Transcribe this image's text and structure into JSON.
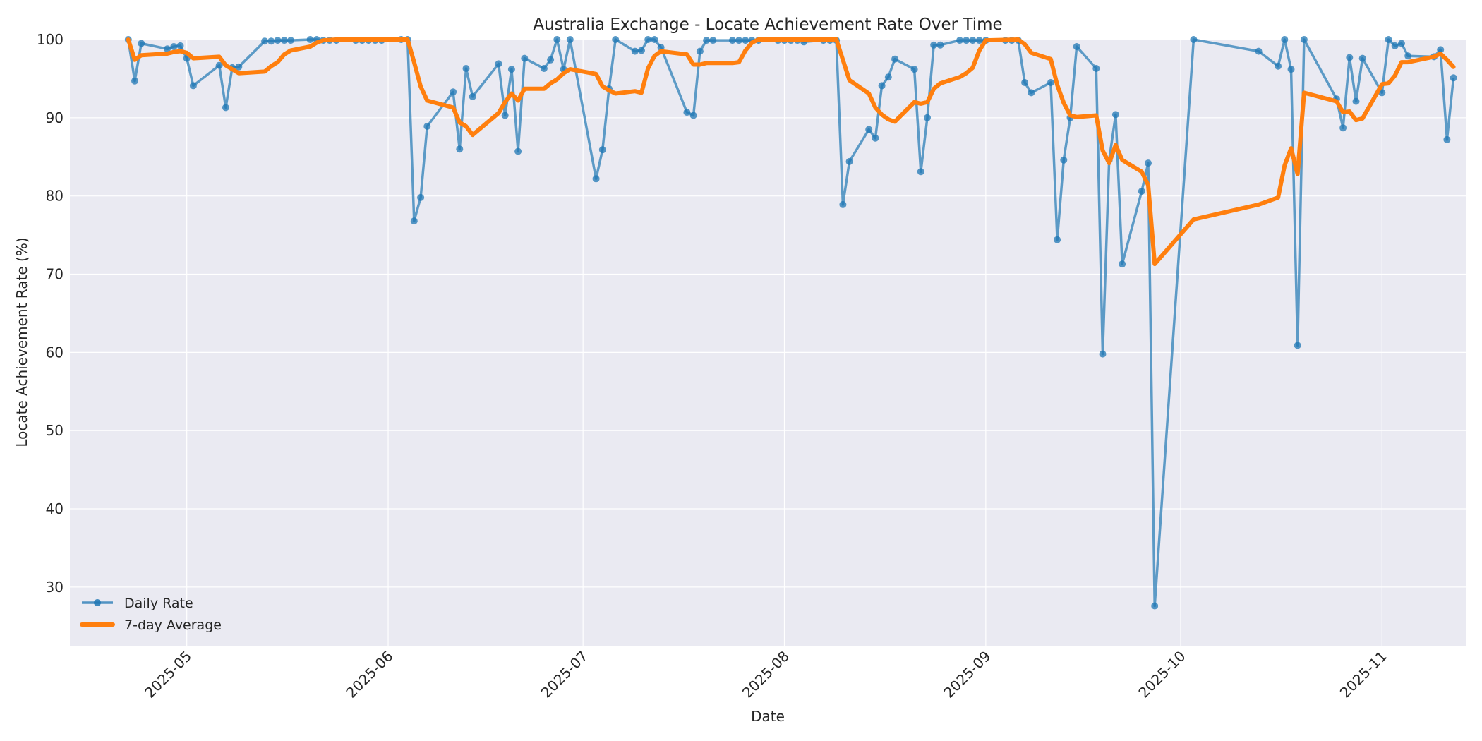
{
  "chart_data": {
    "type": "line",
    "title": "Australia Exchange - Locate Achievement Rate Over Time",
    "xlabel": "Date",
    "ylabel": "Locate Achievement Rate (%)",
    "ylim": [
      22.5,
      100
    ],
    "xlim": [
      "2025-04-13",
      "2025-11-14"
    ],
    "grid": true,
    "legend_position": "lower left",
    "x_ticks": [
      "2025-05",
      "2025-06",
      "2025-07",
      "2025-08",
      "2025-09",
      "2025-10",
      "2025-11"
    ],
    "y_ticks": [
      30,
      40,
      50,
      60,
      70,
      80,
      90,
      100
    ],
    "colors": {
      "daily": "#1f77b4",
      "average": "#ff7f0e",
      "plot_bg": "#eaeaf2",
      "grid": "#ffffff"
    },
    "series": [
      {
        "name": "Daily Rate",
        "style": "line-with-markers",
        "points": [
          [
            "2025-04-22",
            100.0
          ],
          [
            "2025-04-23",
            94.7
          ],
          [
            "2025-04-24",
            99.5
          ],
          [
            "2025-04-28",
            98.8
          ],
          [
            "2025-04-29",
            99.1
          ],
          [
            "2025-04-30",
            99.2
          ],
          [
            "2025-05-01",
            97.6
          ],
          [
            "2025-05-02",
            94.1
          ],
          [
            "2025-05-06",
            96.7
          ],
          [
            "2025-05-07",
            91.3
          ],
          [
            "2025-05-08",
            96.4
          ],
          [
            "2025-05-09",
            96.5
          ],
          [
            "2025-05-13",
            99.8
          ],
          [
            "2025-05-14",
            99.8
          ],
          [
            "2025-05-15",
            99.9
          ],
          [
            "2025-05-16",
            99.9
          ],
          [
            "2025-05-17",
            99.9
          ],
          [
            "2025-05-20",
            100.0
          ],
          [
            "2025-05-21",
            100.0
          ],
          [
            "2025-05-22",
            99.9
          ],
          [
            "2025-05-23",
            99.9
          ],
          [
            "2025-05-24",
            99.9
          ],
          [
            "2025-05-27",
            99.9
          ],
          [
            "2025-05-28",
            99.9
          ],
          [
            "2025-05-29",
            99.9
          ],
          [
            "2025-05-30",
            99.9
          ],
          [
            "2025-05-31",
            99.9
          ],
          [
            "2025-06-03",
            100.0
          ],
          [
            "2025-06-04",
            100.0
          ],
          [
            "2025-06-05",
            76.8
          ],
          [
            "2025-06-06",
            79.8
          ],
          [
            "2025-06-07",
            88.9
          ],
          [
            "2025-06-11",
            93.3
          ],
          [
            "2025-06-12",
            86.0
          ],
          [
            "2025-06-13",
            96.3
          ],
          [
            "2025-06-14",
            92.7
          ],
          [
            "2025-06-18",
            96.9
          ],
          [
            "2025-06-19",
            90.3
          ],
          [
            "2025-06-20",
            96.2
          ],
          [
            "2025-06-21",
            85.7
          ],
          [
            "2025-06-22",
            97.6
          ],
          [
            "2025-06-25",
            96.3
          ],
          [
            "2025-06-26",
            97.4
          ],
          [
            "2025-06-27",
            100.0
          ],
          [
            "2025-06-28",
            96.2
          ],
          [
            "2025-06-29",
            100.0
          ],
          [
            "2025-07-03",
            82.2
          ],
          [
            "2025-07-04",
            85.9
          ],
          [
            "2025-07-05",
            93.7
          ],
          [
            "2025-07-06",
            100.0
          ],
          [
            "2025-07-09",
            98.5
          ],
          [
            "2025-07-10",
            98.6
          ],
          [
            "2025-07-11",
            100.0
          ],
          [
            "2025-07-12",
            100.0
          ],
          [
            "2025-07-13",
            99.0
          ],
          [
            "2025-07-17",
            90.7
          ],
          [
            "2025-07-18",
            90.3
          ],
          [
            "2025-07-19",
            98.5
          ],
          [
            "2025-07-20",
            99.9
          ],
          [
            "2025-07-21",
            99.9
          ],
          [
            "2025-07-24",
            99.9
          ],
          [
            "2025-07-25",
            99.9
          ],
          [
            "2025-07-26",
            99.9
          ],
          [
            "2025-07-27",
            99.9
          ],
          [
            "2025-07-28",
            99.9
          ],
          [
            "2025-07-31",
            99.9
          ],
          [
            "2025-08-01",
            99.9
          ],
          [
            "2025-08-02",
            99.9
          ],
          [
            "2025-08-03",
            99.9
          ],
          [
            "2025-08-04",
            99.7
          ],
          [
            "2025-08-07",
            99.9
          ],
          [
            "2025-08-08",
            99.9
          ],
          [
            "2025-08-09",
            99.9
          ],
          [
            "2025-08-10",
            78.9
          ],
          [
            "2025-08-11",
            84.4
          ],
          [
            "2025-08-14",
            88.5
          ],
          [
            "2025-08-15",
            87.4
          ],
          [
            "2025-08-16",
            94.1
          ],
          [
            "2025-08-17",
            95.2
          ],
          [
            "2025-08-18",
            97.5
          ],
          [
            "2025-08-21",
            96.2
          ],
          [
            "2025-08-22",
            83.1
          ],
          [
            "2025-08-23",
            90.0
          ],
          [
            "2025-08-24",
            99.3
          ],
          [
            "2025-08-25",
            99.3
          ],
          [
            "2025-08-28",
            99.9
          ],
          [
            "2025-08-29",
            99.9
          ],
          [
            "2025-08-30",
            99.9
          ],
          [
            "2025-08-31",
            99.9
          ],
          [
            "2025-09-01",
            99.9
          ],
          [
            "2025-09-04",
            99.9
          ],
          [
            "2025-09-05",
            99.9
          ],
          [
            "2025-09-06",
            99.9
          ],
          [
            "2025-09-07",
            94.5
          ],
          [
            "2025-09-08",
            93.2
          ],
          [
            "2025-09-11",
            94.5
          ],
          [
            "2025-09-12",
            74.4
          ],
          [
            "2025-09-13",
            84.6
          ],
          [
            "2025-09-14",
            90.0
          ],
          [
            "2025-09-15",
            99.1
          ],
          [
            "2025-09-18",
            96.3
          ],
          [
            "2025-09-19",
            59.8
          ],
          [
            "2025-09-20",
            84.6
          ],
          [
            "2025-09-21",
            90.4
          ],
          [
            "2025-09-22",
            71.3
          ],
          [
            "2025-09-25",
            80.6
          ],
          [
            "2025-09-26",
            84.2
          ],
          [
            "2025-09-27",
            27.6
          ],
          [
            "2025-10-03",
            100.0
          ],
          [
            "2025-10-13",
            98.5
          ],
          [
            "2025-10-16",
            96.6
          ],
          [
            "2025-10-17",
            100.0
          ],
          [
            "2025-10-18",
            96.2
          ],
          [
            "2025-10-19",
            60.9
          ],
          [
            "2025-10-20",
            100.0
          ],
          [
            "2025-10-25",
            92.4
          ],
          [
            "2025-10-26",
            88.7
          ],
          [
            "2025-10-27",
            97.7
          ],
          [
            "2025-10-28",
            92.1
          ],
          [
            "2025-10-29",
            97.6
          ],
          [
            "2025-11-01",
            93.2
          ],
          [
            "2025-11-02",
            100.0
          ],
          [
            "2025-11-03",
            99.2
          ],
          [
            "2025-11-04",
            99.5
          ],
          [
            "2025-11-05",
            97.9
          ],
          [
            "2025-11-09",
            97.8
          ],
          [
            "2025-11-10",
            98.7
          ],
          [
            "2025-11-11",
            87.2
          ],
          [
            "2025-11-12",
            95.1
          ]
        ]
      },
      {
        "name": "7-day Average",
        "style": "thick-line",
        "points": [
          [
            "2025-04-22",
            100.0
          ],
          [
            "2025-04-23",
            97.4
          ],
          [
            "2025-04-24",
            98.0
          ],
          [
            "2025-04-28",
            98.2
          ],
          [
            "2025-04-29",
            98.4
          ],
          [
            "2025-04-30",
            98.5
          ],
          [
            "2025-05-01",
            98.3
          ],
          [
            "2025-05-02",
            97.6
          ],
          [
            "2025-05-06",
            97.8
          ],
          [
            "2025-05-07",
            96.7
          ],
          [
            "2025-05-08",
            96.2
          ],
          [
            "2025-05-09",
            95.7
          ],
          [
            "2025-05-13",
            95.9
          ],
          [
            "2025-05-14",
            96.6
          ],
          [
            "2025-05-15",
            97.1
          ],
          [
            "2025-05-16",
            98.1
          ],
          [
            "2025-05-17",
            98.6
          ],
          [
            "2025-05-20",
            99.1
          ],
          [
            "2025-05-21",
            99.6
          ],
          [
            "2025-05-22",
            99.9
          ],
          [
            "2025-05-24",
            100.0
          ],
          [
            "2025-06-04",
            100.0
          ],
          [
            "2025-06-05",
            97.1
          ],
          [
            "2025-06-06",
            94.0
          ],
          [
            "2025-06-07",
            92.2
          ],
          [
            "2025-06-11",
            91.3
          ],
          [
            "2025-06-12",
            89.4
          ],
          [
            "2025-06-13",
            88.9
          ],
          [
            "2025-06-14",
            87.8
          ],
          [
            "2025-06-18",
            90.6
          ],
          [
            "2025-06-19",
            92.0
          ],
          [
            "2025-06-20",
            93.1
          ],
          [
            "2025-06-21",
            92.2
          ],
          [
            "2025-06-22",
            93.7
          ],
          [
            "2025-06-25",
            93.7
          ],
          [
            "2025-06-26",
            94.4
          ],
          [
            "2025-06-27",
            94.9
          ],
          [
            "2025-06-28",
            95.7
          ],
          [
            "2025-06-29",
            96.2
          ],
          [
            "2025-07-03",
            95.6
          ],
          [
            "2025-07-04",
            94.0
          ],
          [
            "2025-07-05",
            93.5
          ],
          [
            "2025-07-06",
            93.1
          ],
          [
            "2025-07-09",
            93.4
          ],
          [
            "2025-07-10",
            93.2
          ],
          [
            "2025-07-11",
            96.3
          ],
          [
            "2025-07-12",
            97.9
          ],
          [
            "2025-07-13",
            98.5
          ],
          [
            "2025-07-17",
            98.1
          ],
          [
            "2025-07-18",
            96.8
          ],
          [
            "2025-07-19",
            96.8
          ],
          [
            "2025-07-20",
            97.0
          ],
          [
            "2025-07-24",
            97.0
          ],
          [
            "2025-07-25",
            97.1
          ],
          [
            "2025-07-26",
            98.6
          ],
          [
            "2025-07-27",
            99.6
          ],
          [
            "2025-07-28",
            100.0
          ],
          [
            "2025-08-09",
            100.0
          ],
          [
            "2025-08-10",
            97.4
          ],
          [
            "2025-08-11",
            94.8
          ],
          [
            "2025-08-14",
            93.1
          ],
          [
            "2025-08-15",
            91.3
          ],
          [
            "2025-08-16",
            90.4
          ],
          [
            "2025-08-17",
            89.8
          ],
          [
            "2025-08-18",
            89.5
          ],
          [
            "2025-08-21",
            92.0
          ],
          [
            "2025-08-22",
            91.8
          ],
          [
            "2025-08-23",
            92.0
          ],
          [
            "2025-08-24",
            93.7
          ],
          [
            "2025-08-25",
            94.4
          ],
          [
            "2025-08-28",
            95.2
          ],
          [
            "2025-08-29",
            95.7
          ],
          [
            "2025-08-30",
            96.4
          ],
          [
            "2025-08-31",
            98.6
          ],
          [
            "2025-09-01",
            99.9
          ],
          [
            "2025-09-06",
            100.0
          ],
          [
            "2025-09-07",
            99.4
          ],
          [
            "2025-09-08",
            98.3
          ],
          [
            "2025-09-11",
            97.5
          ],
          [
            "2025-09-12",
            94.2
          ],
          [
            "2025-09-13",
            91.9
          ],
          [
            "2025-09-14",
            90.3
          ],
          [
            "2025-09-15",
            90.1
          ],
          [
            "2025-09-18",
            90.3
          ],
          [
            "2025-09-19",
            85.8
          ],
          [
            "2025-09-20",
            84.2
          ],
          [
            "2025-09-21",
            86.5
          ],
          [
            "2025-09-22",
            84.6
          ],
          [
            "2025-09-25",
            83.1
          ],
          [
            "2025-09-26",
            81.4
          ],
          [
            "2025-09-27",
            71.3
          ],
          [
            "2025-10-03",
            77.0
          ],
          [
            "2025-10-13",
            78.9
          ],
          [
            "2025-10-16",
            79.8
          ],
          [
            "2025-10-17",
            83.9
          ],
          [
            "2025-10-18",
            86.1
          ],
          [
            "2025-10-19",
            82.8
          ],
          [
            "2025-10-20",
            93.2
          ],
          [
            "2025-10-25",
            92.1
          ],
          [
            "2025-10-26",
            90.7
          ],
          [
            "2025-10-27",
            90.8
          ],
          [
            "2025-10-28",
            89.7
          ],
          [
            "2025-10-29",
            89.9
          ],
          [
            "2025-11-01",
            94.3
          ],
          [
            "2025-11-02",
            94.4
          ],
          [
            "2025-11-03",
            95.4
          ],
          [
            "2025-11-04",
            97.1
          ],
          [
            "2025-11-05",
            97.1
          ],
          [
            "2025-11-09",
            97.8
          ],
          [
            "2025-11-10",
            98.2
          ],
          [
            "2025-11-11",
            97.4
          ],
          [
            "2025-11-12",
            96.5
          ]
        ]
      }
    ]
  }
}
